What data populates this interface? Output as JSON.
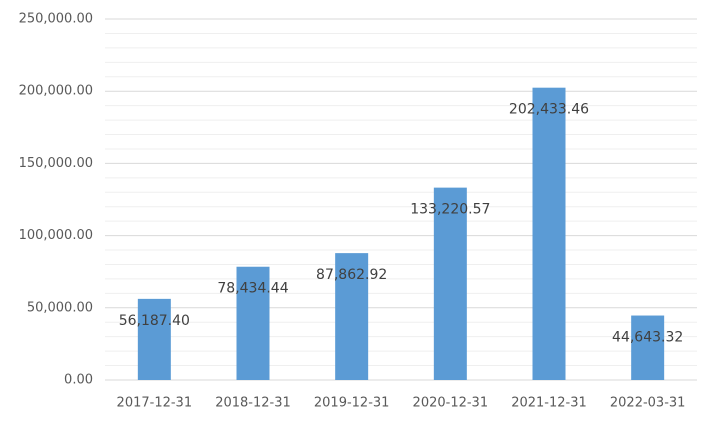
{
  "chart_data": {
    "type": "bar",
    "categories": [
      "2017-12-31",
      "2018-12-31",
      "2019-12-31",
      "2020-12-31",
      "2021-12-31",
      "2022-03-31"
    ],
    "values": [
      56187.4,
      78434.44,
      87862.92,
      133220.57,
      202433.46,
      44643.32
    ],
    "value_labels": [
      "56,187.40",
      "78,434.44",
      "87,862.92",
      "133,220.57",
      "202,433.46",
      "44,643.32"
    ],
    "color": "#5b9bd5",
    "ylim": [
      0,
      250000
    ],
    "yticks": [
      {
        "value": 0,
        "label": "0.00"
      },
      {
        "value": 50000,
        "label": "50,000.00"
      },
      {
        "value": 100000,
        "label": "100,000.00"
      },
      {
        "value": 150000,
        "label": "150,000.00"
      },
      {
        "value": 200000,
        "label": "200,000.00"
      },
      {
        "value": 250000,
        "label": "250,000.00"
      }
    ],
    "minor_yticks": [
      10000,
      20000,
      30000,
      40000,
      60000,
      70000,
      80000,
      90000,
      110000,
      120000,
      130000,
      140000,
      160000,
      170000,
      180000,
      190000,
      210000,
      220000,
      230000,
      240000
    ],
    "grid": true
  }
}
